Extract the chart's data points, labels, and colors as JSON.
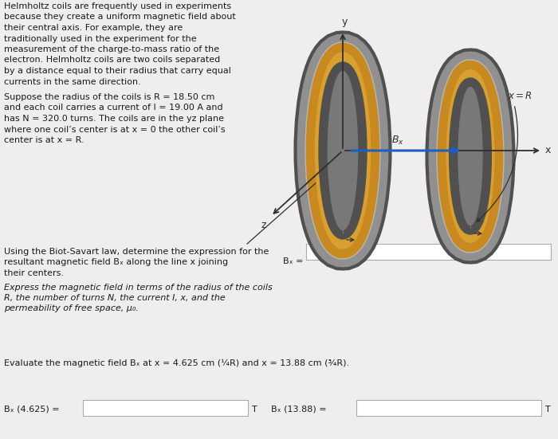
{
  "background_color": "#f0eeec",
  "paragraph1_lines": [
    "Helmholtz coils are frequently used in experiments",
    "because they create a uniform magnetic field about",
    "their central axis. For example, they are",
    "traditionally used in the experiment for the",
    "measurement of the charge-to-mass ratio of the",
    "electron. Helmholtz coils are two coils separated",
    "by a distance equal to their radius that carry equal",
    "currents in the same direction."
  ],
  "paragraph2_lines": [
    "Suppose the radius of the coils is R = 18.50 cm",
    "and each coil carries a current of I = 19.00 A and",
    "has N = 320.0 turns. The coils are in the yz plane",
    "where one coil’s center is at x = 0 the other coil’s",
    "center is at x = R."
  ],
  "paragraph3_lines": [
    "Using the Biot-Savart law, determine the expression for the",
    "resultant magnetic field Bₓ along the line x joining",
    "their centers."
  ],
  "paragraph4_lines": [
    "Express the magnetic field in terms of the radius of the coils",
    "R, the number of turns N, the current I, x, and the",
    "permeability of free space, μ₀."
  ],
  "paragraph5_lines": [
    "Evaluate the magnetic field Bₓ at x = 4.625 cm (¼R) and x = 13.88 cm (¾R)."
  ],
  "label_bx_eq": "Bₓ =",
  "label_bx4625": "Bₓ (4.625) =",
  "label_bx1388": "Bₓ (13.88) =",
  "label_T": "T",
  "gold_color": "#c8891e",
  "gold_light": "#d9a030",
  "gray_outer": "#909090",
  "gray_inner": "#b8b8b8",
  "gray_dark": "#505050",
  "gray_mid": "#787878",
  "blue_arrow": "#1a5fc8",
  "dark_arrow": "#303030",
  "text_color": "#1a1a1a",
  "box_fill": "#ffffff",
  "box_edge": "#aaaaaa",
  "fs_text": 8.0,
  "fs_small": 7.5
}
